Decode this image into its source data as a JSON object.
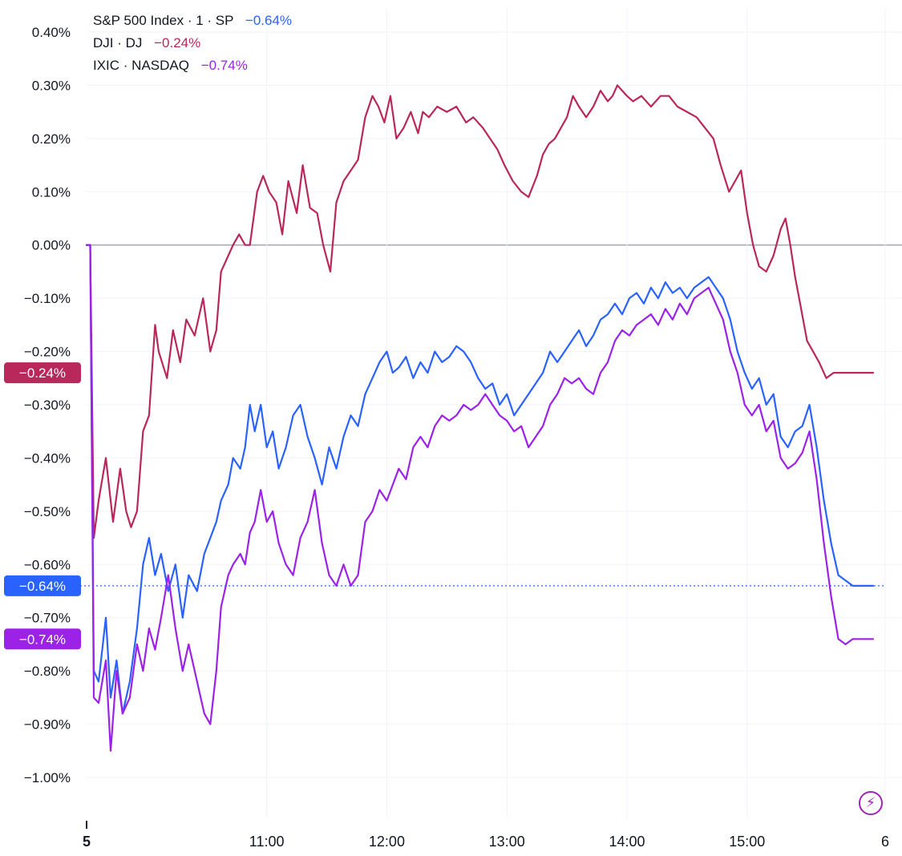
{
  "legend": [
    {
      "label": "S&P 500 Index · 1 · SP",
      "value": "−0.64%",
      "color": "#2962ff"
    },
    {
      "label": "DJI · DJ",
      "value": "−0.24%",
      "color": "#b8285a"
    },
    {
      "label": "IXIC · NASDAQ",
      "value": "−0.74%",
      "color": "#9b22e6"
    }
  ],
  "badges": {
    "dji": "−0.24%",
    "sp": "−0.64%",
    "ixic": "−0.74%"
  },
  "flash_icon": "lightning-bolt-icon",
  "chart_data": {
    "type": "line",
    "title": "",
    "xlabel": "",
    "ylabel": "",
    "ylim": [
      -1.0,
      0.4
    ],
    "x_range_hours": [
      9.5,
      16.15
    ],
    "y_tick_labels": [
      "0.40%",
      "0.30%",
      "0.20%",
      "0.10%",
      "0.00%",
      "−0.10%",
      "−0.20%",
      "−0.30%",
      "−0.40%",
      "−0.50%",
      "−0.60%",
      "−0.70%",
      "−0.80%",
      "−0.90%",
      "−1.00%"
    ],
    "y_tick_values": [
      0.4,
      0.3,
      0.2,
      0.1,
      0.0,
      -0.1,
      -0.2,
      -0.3,
      -0.4,
      -0.5,
      -0.6,
      -0.7,
      -0.8,
      -0.9,
      -1.0
    ],
    "x_ticks": [
      {
        "t": 9.5,
        "label": "5",
        "bold": true
      },
      {
        "t": 11.0,
        "label": "11:00"
      },
      {
        "t": 12.0,
        "label": "12:00"
      },
      {
        "t": 13.0,
        "label": "13:00"
      },
      {
        "t": 14.0,
        "label": "14:00"
      },
      {
        "t": 15.0,
        "label": "15:00"
      },
      {
        "t": 16.15,
        "label": "6"
      }
    ],
    "series": [
      {
        "name": "DJI",
        "color": "#b8285a",
        "last": -0.24,
        "t": [
          9.5,
          9.53,
          9.56,
          9.6,
          9.66,
          9.72,
          9.78,
          9.83,
          9.87,
          9.92,
          9.97,
          10.02,
          10.07,
          10.1,
          10.17,
          10.22,
          10.28,
          10.33,
          10.4,
          10.47,
          10.53,
          10.58,
          10.62,
          10.68,
          10.72,
          10.77,
          10.82,
          10.86,
          10.92,
          10.97,
          11.02,
          11.08,
          11.13,
          11.18,
          11.25,
          11.3,
          11.36,
          11.42,
          11.47,
          11.53,
          11.58,
          11.64,
          11.7,
          11.76,
          11.82,
          11.88,
          11.93,
          11.98,
          12.03,
          12.08,
          12.14,
          12.2,
          12.26,
          12.3,
          12.35,
          12.42,
          12.5,
          12.58,
          12.66,
          12.72,
          12.8,
          12.86,
          12.92,
          12.98,
          13.05,
          13.12,
          13.18,
          13.25,
          13.3,
          13.35,
          13.4,
          13.45,
          13.5,
          13.55,
          13.6,
          13.66,
          13.72,
          13.78,
          13.84,
          13.88,
          13.92,
          13.96,
          14.0,
          14.05,
          14.12,
          14.2,
          14.28,
          14.35,
          14.42,
          14.5,
          14.58,
          14.65,
          14.72,
          14.78,
          14.85,
          14.9,
          14.95,
          15.0,
          15.05,
          15.1,
          15.16,
          15.22,
          15.28,
          15.32,
          15.36,
          15.4,
          15.45,
          15.5,
          15.55,
          15.6,
          15.66,
          15.72,
          15.78,
          15.84,
          15.9,
          15.95,
          16.0,
          16.05
        ],
        "v": [
          0,
          0,
          -0.55,
          -0.48,
          -0.4,
          -0.52,
          -0.42,
          -0.5,
          -0.53,
          -0.5,
          -0.35,
          -0.32,
          -0.15,
          -0.2,
          -0.25,
          -0.16,
          -0.22,
          -0.14,
          -0.17,
          -0.1,
          -0.2,
          -0.16,
          -0.05,
          -0.02,
          0.0,
          0.02,
          0.0,
          0.0,
          0.1,
          0.13,
          0.1,
          0.08,
          0.02,
          0.12,
          0.06,
          0.15,
          0.07,
          0.06,
          0.0,
          -0.05,
          0.08,
          0.12,
          0.14,
          0.16,
          0.24,
          0.28,
          0.26,
          0.23,
          0.28,
          0.2,
          0.22,
          0.25,
          0.21,
          0.25,
          0.24,
          0.26,
          0.25,
          0.26,
          0.23,
          0.24,
          0.22,
          0.2,
          0.18,
          0.15,
          0.12,
          0.1,
          0.09,
          0.13,
          0.17,
          0.19,
          0.2,
          0.22,
          0.24,
          0.28,
          0.26,
          0.24,
          0.26,
          0.29,
          0.27,
          0.28,
          0.3,
          0.29,
          0.28,
          0.27,
          0.28,
          0.26,
          0.28,
          0.28,
          0.26,
          0.25,
          0.24,
          0.22,
          0.2,
          0.15,
          0.1,
          0.12,
          0.14,
          0.06,
          0.0,
          -0.04,
          -0.05,
          -0.02,
          0.03,
          0.05,
          0.0,
          -0.06,
          -0.12,
          -0.18,
          -0.2,
          -0.22,
          -0.25,
          -0.24,
          -0.24,
          -0.24,
          -0.24,
          -0.24,
          -0.24,
          -0.24
        ]
      },
      {
        "name": "S&P 500",
        "color": "#2962ff",
        "last": -0.64,
        "t": [
          9.5,
          9.53,
          9.56,
          9.6,
          9.66,
          9.7,
          9.75,
          9.8,
          9.86,
          9.92,
          9.97,
          10.02,
          10.07,
          10.12,
          10.18,
          10.24,
          10.3,
          10.35,
          10.42,
          10.48,
          10.53,
          10.58,
          10.62,
          10.68,
          10.72,
          10.78,
          10.82,
          10.86,
          10.9,
          10.95,
          11.0,
          11.05,
          11.1,
          11.16,
          11.22,
          11.28,
          11.34,
          11.4,
          11.46,
          11.52,
          11.58,
          11.64,
          11.7,
          11.76,
          11.82,
          11.88,
          11.94,
          12.0,
          12.05,
          12.1,
          12.16,
          12.22,
          12.28,
          12.34,
          12.4,
          12.46,
          12.52,
          12.58,
          12.64,
          12.7,
          12.76,
          12.82,
          12.88,
          12.94,
          13.0,
          13.06,
          13.12,
          13.18,
          13.24,
          13.3,
          13.36,
          13.42,
          13.48,
          13.54,
          13.6,
          13.66,
          13.72,
          13.78,
          13.84,
          13.9,
          13.96,
          14.02,
          14.08,
          14.14,
          14.2,
          14.26,
          14.32,
          14.38,
          14.44,
          14.5,
          14.56,
          14.62,
          14.68,
          14.74,
          14.8,
          14.86,
          14.92,
          14.98,
          15.04,
          15.1,
          15.16,
          15.22,
          15.28,
          15.34,
          15.4,
          15.46,
          15.52,
          15.58,
          15.64,
          15.7,
          15.76,
          15.82,
          15.88,
          15.94,
          16.0,
          16.05
        ],
        "v": [
          0,
          0,
          -0.8,
          -0.82,
          -0.7,
          -0.85,
          -0.78,
          -0.88,
          -0.82,
          -0.72,
          -0.6,
          -0.55,
          -0.62,
          -0.58,
          -0.65,
          -0.6,
          -0.7,
          -0.62,
          -0.65,
          -0.58,
          -0.55,
          -0.52,
          -0.48,
          -0.45,
          -0.4,
          -0.42,
          -0.38,
          -0.3,
          -0.35,
          -0.3,
          -0.38,
          -0.35,
          -0.42,
          -0.38,
          -0.32,
          -0.3,
          -0.36,
          -0.4,
          -0.45,
          -0.38,
          -0.42,
          -0.36,
          -0.32,
          -0.34,
          -0.28,
          -0.25,
          -0.22,
          -0.2,
          -0.24,
          -0.23,
          -0.21,
          -0.25,
          -0.22,
          -0.24,
          -0.2,
          -0.22,
          -0.21,
          -0.19,
          -0.2,
          -0.22,
          -0.25,
          -0.27,
          -0.26,
          -0.3,
          -0.28,
          -0.32,
          -0.3,
          -0.28,
          -0.26,
          -0.24,
          -0.2,
          -0.22,
          -0.2,
          -0.18,
          -0.16,
          -0.19,
          -0.17,
          -0.14,
          -0.13,
          -0.11,
          -0.13,
          -0.1,
          -0.09,
          -0.11,
          -0.08,
          -0.1,
          -0.07,
          -0.09,
          -0.08,
          -0.1,
          -0.08,
          -0.07,
          -0.06,
          -0.08,
          -0.1,
          -0.14,
          -0.2,
          -0.24,
          -0.27,
          -0.25,
          -0.3,
          -0.28,
          -0.36,
          -0.38,
          -0.35,
          -0.34,
          -0.3,
          -0.38,
          -0.48,
          -0.56,
          -0.62,
          -0.63,
          -0.64,
          -0.64,
          -0.64,
          -0.64
        ]
      },
      {
        "name": "IXIC",
        "color": "#9b22e6",
        "last": -0.74,
        "t": [
          9.5,
          9.53,
          9.56,
          9.6,
          9.66,
          9.7,
          9.75,
          9.8,
          9.86,
          9.92,
          9.97,
          10.02,
          10.07,
          10.12,
          10.18,
          10.24,
          10.3,
          10.35,
          10.42,
          10.48,
          10.53,
          10.58,
          10.62,
          10.68,
          10.72,
          10.78,
          10.82,
          10.86,
          10.9,
          10.95,
          11.0,
          11.05,
          11.1,
          11.16,
          11.22,
          11.28,
          11.34,
          11.4,
          11.46,
          11.52,
          11.58,
          11.64,
          11.7,
          11.76,
          11.82,
          11.88,
          11.94,
          12.0,
          12.05,
          12.1,
          12.16,
          12.22,
          12.28,
          12.34,
          12.4,
          12.46,
          12.52,
          12.58,
          12.64,
          12.7,
          12.76,
          12.82,
          12.88,
          12.94,
          13.0,
          13.06,
          13.12,
          13.18,
          13.24,
          13.3,
          13.36,
          13.42,
          13.48,
          13.54,
          13.6,
          13.66,
          13.72,
          13.78,
          13.84,
          13.9,
          13.96,
          14.02,
          14.08,
          14.14,
          14.2,
          14.26,
          14.32,
          14.38,
          14.44,
          14.5,
          14.56,
          14.62,
          14.68,
          14.74,
          14.8,
          14.86,
          14.92,
          14.98,
          15.04,
          15.1,
          15.16,
          15.22,
          15.28,
          15.34,
          15.4,
          15.46,
          15.52,
          15.58,
          15.64,
          15.7,
          15.76,
          15.82,
          15.88,
          15.94,
          16.0,
          16.05
        ],
        "v": [
          0,
          0,
          -0.85,
          -0.86,
          -0.78,
          -0.95,
          -0.8,
          -0.88,
          -0.85,
          -0.75,
          -0.8,
          -0.72,
          -0.76,
          -0.7,
          -0.62,
          -0.72,
          -0.8,
          -0.75,
          -0.82,
          -0.88,
          -0.9,
          -0.8,
          -0.68,
          -0.62,
          -0.6,
          -0.58,
          -0.6,
          -0.54,
          -0.52,
          -0.46,
          -0.52,
          -0.5,
          -0.56,
          -0.6,
          -0.62,
          -0.55,
          -0.52,
          -0.46,
          -0.56,
          -0.62,
          -0.64,
          -0.6,
          -0.64,
          -0.62,
          -0.52,
          -0.5,
          -0.46,
          -0.48,
          -0.45,
          -0.42,
          -0.44,
          -0.38,
          -0.36,
          -0.38,
          -0.34,
          -0.32,
          -0.33,
          -0.32,
          -0.3,
          -0.31,
          -0.3,
          -0.28,
          -0.3,
          -0.32,
          -0.33,
          -0.35,
          -0.34,
          -0.38,
          -0.36,
          -0.34,
          -0.3,
          -0.28,
          -0.25,
          -0.26,
          -0.25,
          -0.27,
          -0.28,
          -0.24,
          -0.22,
          -0.18,
          -0.16,
          -0.17,
          -0.15,
          -0.14,
          -0.13,
          -0.15,
          -0.12,
          -0.14,
          -0.11,
          -0.13,
          -0.1,
          -0.09,
          -0.08,
          -0.11,
          -0.14,
          -0.2,
          -0.24,
          -0.3,
          -0.32,
          -0.3,
          -0.35,
          -0.33,
          -0.4,
          -0.42,
          -0.41,
          -0.39,
          -0.35,
          -0.44,
          -0.56,
          -0.66,
          -0.74,
          -0.75,
          -0.74,
          -0.74,
          -0.74,
          -0.74
        ]
      }
    ]
  }
}
